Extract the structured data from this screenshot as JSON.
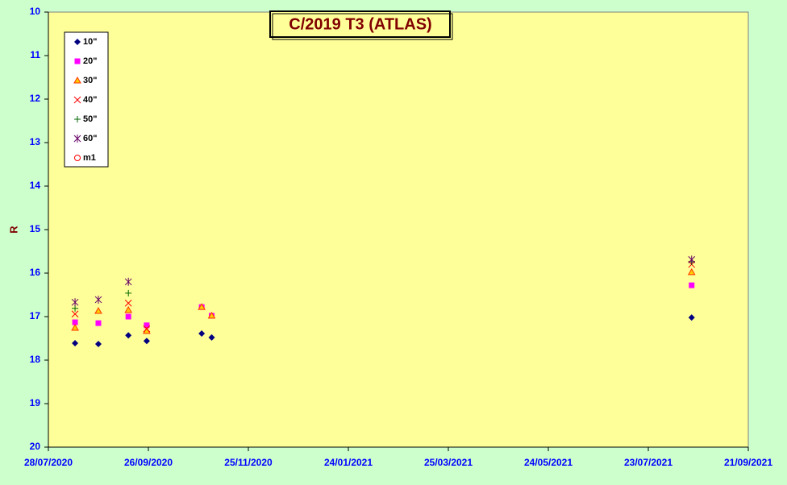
{
  "chart_data": {
    "type": "scatter",
    "title": "C/2019 T3 (ATLAS)",
    "y_label": "R",
    "x": [
      "2020-08-13",
      "2020-08-27",
      "2020-09-14",
      "2020-09-25",
      "2020-10-28",
      "2020-11-03",
      "2021-08-18"
    ],
    "series": [
      {
        "name": "10\"",
        "color": "#000080",
        "marker": "diamond",
        "values": [
          17.61,
          17.63,
          17.43,
          17.56,
          17.39,
          17.48,
          17.02
        ]
      },
      {
        "name": "20\"",
        "color": "#ff00ff",
        "marker": "square",
        "values": [
          17.13,
          17.15,
          17.0,
          17.2,
          16.78,
          16.98,
          16.28
        ]
      },
      {
        "name": "30\"",
        "color": "#ff3300",
        "marker": "triangle",
        "values": [
          17.26,
          16.87,
          16.85,
          17.33,
          16.78,
          16.98,
          15.98
        ]
      },
      {
        "name": "40\"",
        "color": "#ff0000",
        "marker": "x",
        "values": [
          16.94,
          null,
          16.69,
          17.28,
          null,
          null,
          15.8
        ]
      },
      {
        "name": "50\"",
        "color": "#006600",
        "marker": "plus",
        "values": [
          16.81,
          null,
          16.46,
          null,
          null,
          null,
          15.74
        ]
      },
      {
        "name": "60\"",
        "color": "#660066",
        "marker": "star",
        "values": [
          16.67,
          16.61,
          16.2,
          null,
          null,
          null,
          15.69
        ]
      },
      {
        "name": "m1",
        "color": "#ff0000",
        "marker": "circle",
        "values": [
          null,
          null,
          null,
          null,
          null,
          null,
          null
        ]
      }
    ],
    "xlim": [
      "2020-07-28",
      "2021-09-21"
    ],
    "xticks": [
      {
        "value": "2020-07-28",
        "label": "28/07/2020"
      },
      {
        "value": "2020-09-26",
        "label": "26/09/2020"
      },
      {
        "value": "2020-11-25",
        "label": "25/11/2020"
      },
      {
        "value": "2021-01-24",
        "label": "24/01/2021"
      },
      {
        "value": "2021-03-25",
        "label": "25/03/2021"
      },
      {
        "value": "2021-05-24",
        "label": "24/05/2021"
      },
      {
        "value": "2021-07-23",
        "label": "23/07/2021"
      },
      {
        "value": "2021-09-21",
        "label": "21/09/2021"
      }
    ],
    "ylim": [
      10,
      20
    ],
    "yticks": [
      10,
      11,
      12,
      13,
      14,
      15,
      16,
      17,
      18,
      19,
      20
    ],
    "y_reversed": true,
    "grid": false,
    "legend": "top-left"
  }
}
